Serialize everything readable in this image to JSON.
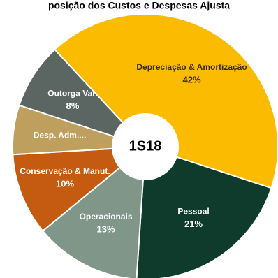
{
  "chart_data": {
    "type": "donut",
    "title": "posição dos Custos e Despesas Ajusta",
    "center_label": "1S18",
    "categories": [
      "Depreciação & Amortização",
      "Pessoal",
      "Operacionais",
      "Conservação & Manut.",
      "Desp. Adm....",
      "Outorga Var."
    ],
    "values": [
      42,
      21,
      13,
      10,
      6,
      8
    ],
    "value_labels": [
      "42%",
      "21%",
      "13%",
      "10%",
      null,
      "8%"
    ],
    "colors": [
      "#fbbb00",
      "#0e3b2c",
      "#7f9689",
      "#c55a11",
      "#bf9f5e",
      "#5b6562"
    ]
  }
}
